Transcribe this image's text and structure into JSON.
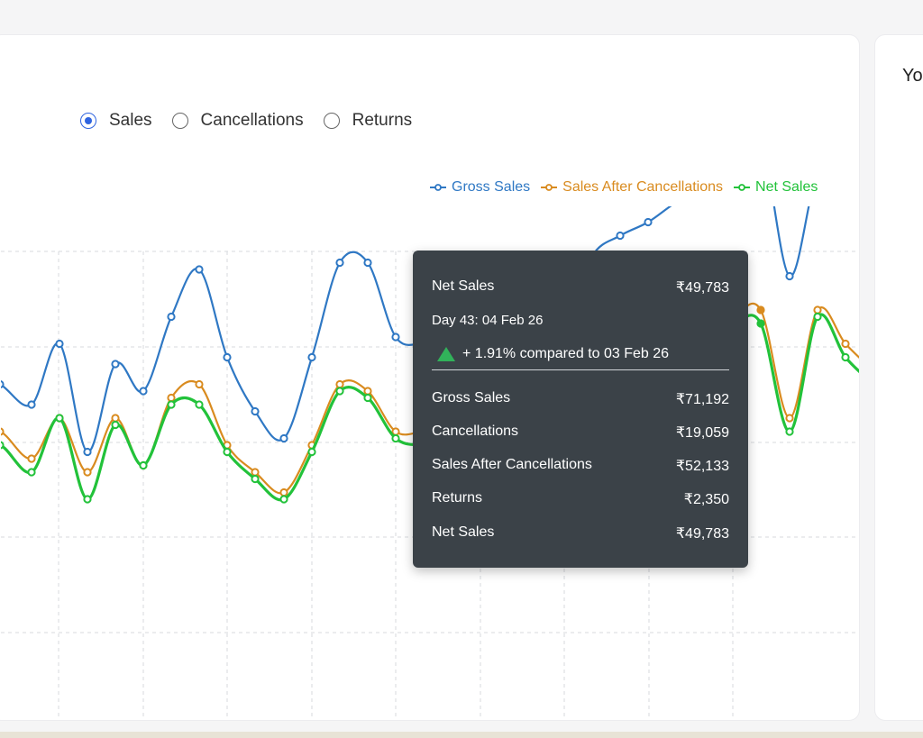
{
  "controls": {
    "radios": [
      {
        "label": "Sales",
        "checked": true
      },
      {
        "label": "Cancellations",
        "checked": false
      },
      {
        "label": "Returns",
        "checked": false
      }
    ]
  },
  "side_panel": {
    "title": "Yo"
  },
  "tooltip": {
    "title_label": "Net Sales",
    "title_value": "₹49,783",
    "date": "Day 43: 04 Feb 26",
    "compare": "+ 1.91% compared to 03 Feb 26",
    "rows": [
      {
        "label": "Gross Sales",
        "value": "₹71,192"
      },
      {
        "label": "Cancellations",
        "value": "₹19,059"
      },
      {
        "label": "Sales After Cancellations",
        "value": "₹52,133"
      },
      {
        "label": "Returns",
        "value": "₹2,350"
      },
      {
        "label": "Net Sales",
        "value": "₹49,783"
      }
    ]
  },
  "chart_data": {
    "type": "line",
    "title": "",
    "xlabel": "",
    "ylabel": "",
    "grid": true,
    "legend": "top-right",
    "colors": {
      "gross": "#2f78c4",
      "after_cancel": "#d98b1f",
      "net": "#22c23a"
    },
    "series": [
      {
        "name": "Gross Sales",
        "color": "#2f78c4",
        "x": [
          -32,
          -1,
          34,
          65,
          96,
          127,
          158,
          189,
          220,
          251,
          282,
          314,
          345,
          376,
          407,
          438,
          469,
          500,
          531,
          562,
          593,
          625,
          656,
          687,
          718,
          750,
          781,
          812,
          843,
          875,
          906,
          937,
          968
        ],
        "y": [
          52,
          51,
          48,
          57,
          41,
          54,
          50,
          61,
          68,
          55,
          47,
          43,
          55,
          69,
          69,
          58,
          57,
          57,
          55,
          54,
          52,
          60,
          70,
          73,
          75,
          78,
          80,
          82,
          87,
          67,
          82,
          80,
          77
        ]
      },
      {
        "name": "Sales After Cancellations",
        "color": "#d98b1f",
        "x": [
          -32,
          -1,
          34,
          65,
          96,
          127,
          158,
          189,
          220,
          251,
          282,
          314,
          345,
          376,
          407,
          438,
          469,
          500,
          531,
          562,
          593,
          625,
          656,
          687,
          718,
          750,
          781,
          812,
          843,
          875,
          906,
          937,
          968
        ],
        "y": [
          43,
          44,
          40,
          46,
          38,
          46,
          39,
          49,
          51,
          42,
          38,
          35,
          42,
          51,
          50,
          44,
          44,
          44,
          42,
          41,
          40,
          45,
          52,
          55,
          57,
          59,
          60,
          61,
          62,
          46,
          62,
          57,
          53
        ]
      },
      {
        "name": "Net Sales",
        "color": "#22c23a",
        "x": [
          -32,
          -1,
          34,
          65,
          96,
          127,
          158,
          189,
          220,
          251,
          282,
          314,
          345,
          376,
          407,
          438,
          469,
          500,
          531,
          562,
          593,
          625,
          656,
          687,
          718,
          750,
          781,
          812,
          843,
          875,
          906,
          937,
          968
        ],
        "y": [
          41,
          42,
          38,
          46,
          34,
          45,
          39,
          48,
          48,
          41,
          37,
          34,
          41,
          50,
          49,
          43,
          42,
          42,
          40,
          39,
          37,
          44,
          51,
          54,
          56,
          58,
          59,
          60,
          60,
          44,
          61,
          55,
          51
        ]
      }
    ]
  }
}
